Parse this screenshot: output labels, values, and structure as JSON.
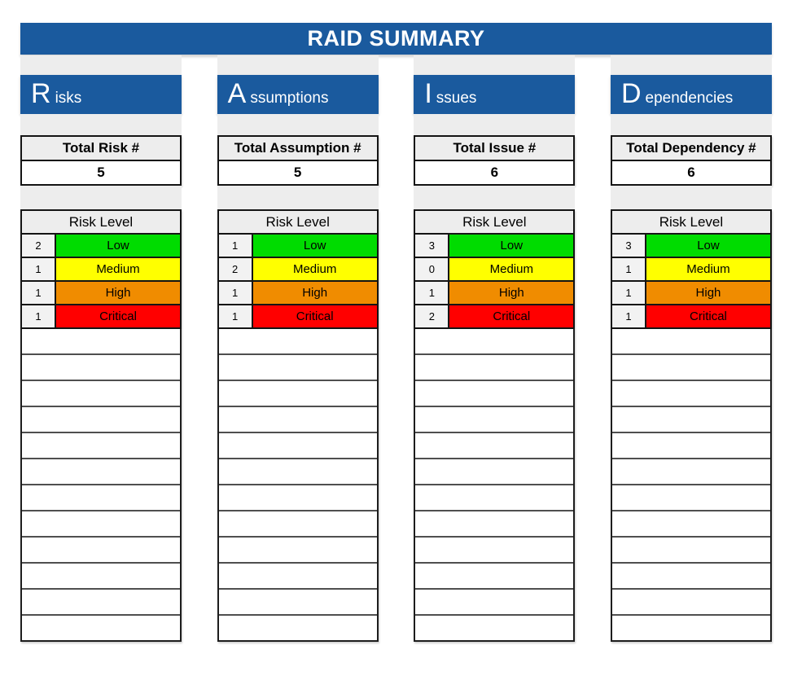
{
  "banner": {
    "title": "RAID SUMMARY"
  },
  "colors": {
    "header_blue": "#1a5a9e",
    "panel_gray": "#ededed",
    "low_green": "#00dc00",
    "medium_yellow": "#ffff00",
    "high_orange": "#f08c00",
    "critical_red": "#ff0000"
  },
  "columns": [
    {
      "id": "risks",
      "initial": "R",
      "rest": "isks",
      "total_label": "Total Risk #",
      "total_value": "5",
      "level_header": "Risk Level",
      "levels": [
        {
          "count": "2",
          "label": "Low",
          "color": "#00dc00"
        },
        {
          "count": "1",
          "label": "Medium",
          "color": "#ffff00"
        },
        {
          "count": "1",
          "label": "High",
          "color": "#f08c00"
        },
        {
          "count": "1",
          "label": "Critical",
          "color": "#ff0000"
        }
      ],
      "empty_rows": 12
    },
    {
      "id": "assumptions",
      "initial": "A",
      "rest": "ssumptions",
      "total_label": "Total Assumption #",
      "total_value": "5",
      "level_header": "Risk Level",
      "levels": [
        {
          "count": "1",
          "label": "Low",
          "color": "#00dc00"
        },
        {
          "count": "2",
          "label": "Medium",
          "color": "#ffff00"
        },
        {
          "count": "1",
          "label": "High",
          "color": "#f08c00"
        },
        {
          "count": "1",
          "label": "Critical",
          "color": "#ff0000"
        }
      ],
      "empty_rows": 12
    },
    {
      "id": "issues",
      "initial": "I",
      "rest": "ssues",
      "total_label": "Total Issue #",
      "total_value": "6",
      "level_header": "Risk Level",
      "levels": [
        {
          "count": "3",
          "label": "Low",
          "color": "#00dc00"
        },
        {
          "count": "0",
          "label": "Medium",
          "color": "#ffff00"
        },
        {
          "count": "1",
          "label": "High",
          "color": "#f08c00"
        },
        {
          "count": "2",
          "label": "Critical",
          "color": "#ff0000"
        }
      ],
      "empty_rows": 12
    },
    {
      "id": "dependencies",
      "initial": "D",
      "rest": "ependencies",
      "total_label": "Total Dependency #",
      "total_value": "6",
      "level_header": "Risk Level",
      "levels": [
        {
          "count": "3",
          "label": "Low",
          "color": "#00dc00"
        },
        {
          "count": "1",
          "label": "Medium",
          "color": "#ffff00"
        },
        {
          "count": "1",
          "label": "High",
          "color": "#f08c00"
        },
        {
          "count": "1",
          "label": "Critical",
          "color": "#ff0000"
        }
      ],
      "empty_rows": 12
    }
  ]
}
